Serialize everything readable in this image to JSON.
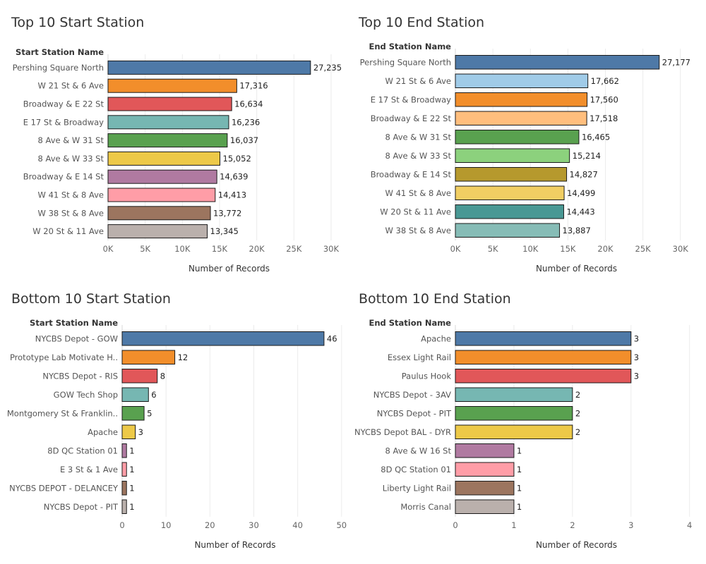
{
  "chart_data": [
    {
      "type": "bar",
      "title": "Top 10 Start Station",
      "ylabel": "Start Station Name",
      "xlabel": "Number of Records",
      "categories": [
        "Pershing Square North",
        "W 21 St & 6 Ave",
        "Broadway & E 22 St",
        "E 17 St & Broadway",
        "8 Ave & W 31 St",
        "8 Ave & W 33 St",
        "Broadway & E 14 St",
        "W 41 St & 8 Ave",
        "W 38 St & 8 Ave",
        "W 20 St & 11 Ave"
      ],
      "values": [
        27235,
        17316,
        16634,
        16236,
        16037,
        15052,
        14639,
        14413,
        13772,
        13345
      ],
      "value_labels": [
        "27,235",
        "17,316",
        "16,634",
        "16,236",
        "16,037",
        "15,052",
        "14,639",
        "14,413",
        "13,772",
        "13,345"
      ],
      "colors": [
        "#4e79a7",
        "#f28e2b",
        "#e15759",
        "#76b7b2",
        "#59a14f",
        "#edc948",
        "#b07aa1",
        "#ff9da7",
        "#9c755f",
        "#bab0ac"
      ],
      "xlim": [
        0,
        32000
      ],
      "xticks": [
        0,
        5000,
        10000,
        15000,
        20000,
        25000,
        30000
      ],
      "xtick_labels": [
        "0K",
        "5K",
        "10K",
        "15K",
        "20K",
        "25K",
        "30K"
      ]
    },
    {
      "type": "bar",
      "title": "Top 10 End Station",
      "ylabel": "End Station Name",
      "xlabel": "Number of Records",
      "categories": [
        "Pershing Square North",
        "W 21 St & 6 Ave",
        "E 17 St & Broadway",
        "Broadway & E 22 St",
        "8 Ave & W 31 St",
        "8 Ave & W 33 St",
        "Broadway & E 14 St",
        "W 41 St & 8 Ave",
        "W 20 St & 11 Ave",
        "W 38 St & 8 Ave"
      ],
      "values": [
        27177,
        17662,
        17560,
        17518,
        16465,
        15214,
        14827,
        14499,
        14443,
        13887
      ],
      "value_labels": [
        "27,177",
        "17,662",
        "17,560",
        "17,518",
        "16,465",
        "15,214",
        "14,827",
        "14,499",
        "14,443",
        "13,887"
      ],
      "colors": [
        "#4e79a7",
        "#a0cbe8",
        "#f28e2b",
        "#ffbe7d",
        "#59a14f",
        "#8cd17d",
        "#b6992d",
        "#f1ce63",
        "#499894",
        "#86bcb6"
      ],
      "xlim": [
        0,
        32000
      ],
      "xticks": [
        0,
        5000,
        10000,
        15000,
        20000,
        25000,
        30000
      ],
      "xtick_labels": [
        "0K",
        "5K",
        "10K",
        "15K",
        "20K",
        "25K",
        "30K"
      ]
    },
    {
      "type": "bar",
      "title": "Bottom 10 Start Station",
      "ylabel": "Start Station Name",
      "xlabel": "Number of Records",
      "categories": [
        "NYCBS Depot - GOW",
        "Prototype Lab Motivate H..",
        "NYCBS Depot - RIS",
        "GOW Tech Shop",
        "Montgomery St & Franklin..",
        "Apache",
        "8D QC Station 01",
        "E 3 St & 1 Ave",
        "NYCBS DEPOT - DELANCEY",
        "NYCBS Depot - PIT"
      ],
      "values": [
        46,
        12,
        8,
        6,
        5,
        3,
        1,
        1,
        1,
        1
      ],
      "value_labels": [
        "46",
        "12",
        "8",
        "6",
        "5",
        "3",
        "1",
        "1",
        "1",
        "1"
      ],
      "colors": [
        "#4e79a7",
        "#f28e2b",
        "#e15759",
        "#76b7b2",
        "#59a14f",
        "#edc948",
        "#b07aa1",
        "#ff9da7",
        "#9c755f",
        "#bab0ac"
      ],
      "xlim": [
        0,
        51
      ],
      "xticks": [
        0,
        10,
        20,
        30,
        40,
        50
      ],
      "xtick_labels": [
        "0",
        "10",
        "20",
        "30",
        "40",
        "50"
      ]
    },
    {
      "type": "bar",
      "title": "Bottom 10 End Station",
      "ylabel": "End Station Name",
      "xlabel": "Number of Records",
      "categories": [
        "Apache",
        "Essex Light Rail",
        "Paulus Hook",
        "NYCBS Depot - 3AV",
        "NYCBS Depot - PIT",
        "NYCBS Depot BAL - DYR",
        "8 Ave & W 16 St",
        "8D QC Station 01",
        "Liberty Light Rail",
        "Morris Canal"
      ],
      "values": [
        3,
        3,
        3,
        2,
        2,
        2,
        1,
        1,
        1,
        1
      ],
      "value_labels": [
        "3",
        "3",
        "3",
        "2",
        "2",
        "2",
        "1",
        "1",
        "1",
        "1"
      ],
      "colors": [
        "#4e79a7",
        "#f28e2b",
        "#e15759",
        "#76b7b2",
        "#59a14f",
        "#edc948",
        "#b07aa1",
        "#ff9da7",
        "#9c755f",
        "#bab0ac"
      ],
      "xlim": [
        0,
        4.1
      ],
      "xticks": [
        0,
        1,
        2,
        3,
        4
      ],
      "xtick_labels": [
        "0",
        "1",
        "2",
        "3",
        "4"
      ]
    }
  ]
}
